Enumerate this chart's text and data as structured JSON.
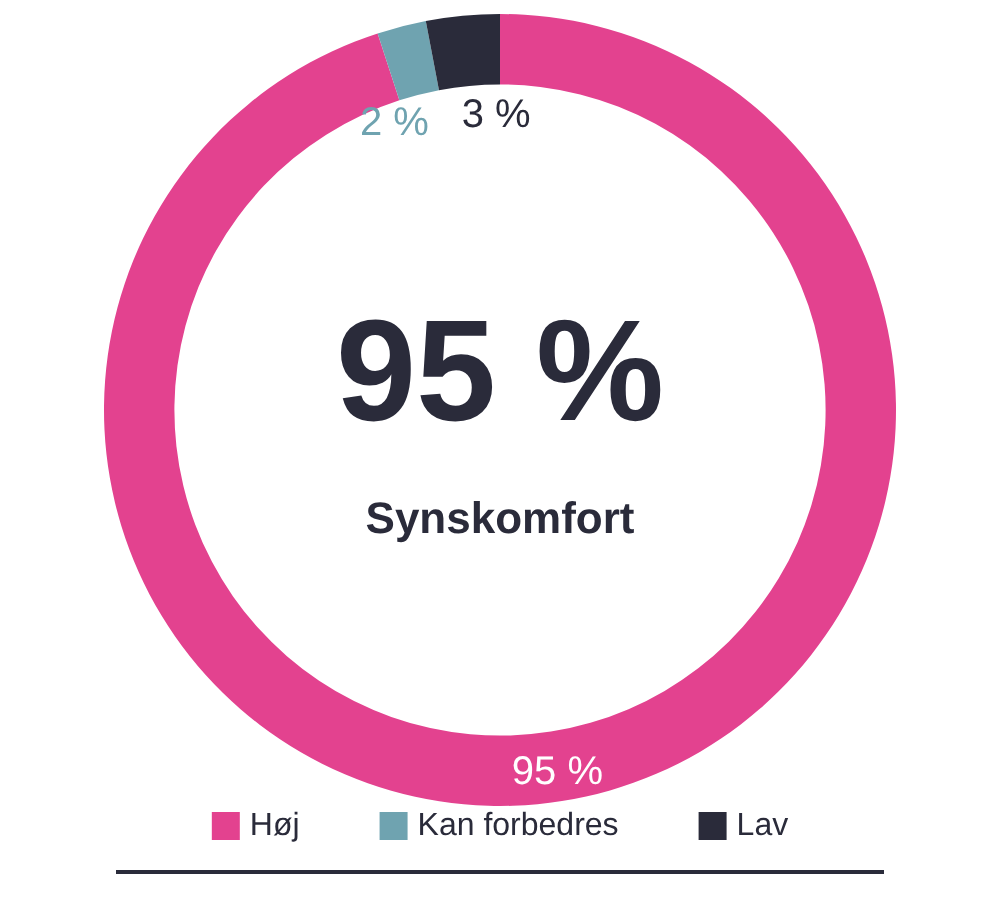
{
  "chart_data": {
    "type": "donut",
    "categories": [
      "Høj",
      "Kan forbedres",
      "Lav"
    ],
    "values": [
      95,
      2,
      3
    ],
    "colors": [
      "#e3428f",
      "#6fa3b0",
      "#2a2b3a"
    ],
    "value_labels": [
      "95 %",
      "2 %",
      "3 %"
    ],
    "annotations": [
      "95 %",
      "Synskomfort"
    ],
    "legend": "bottom"
  }
}
